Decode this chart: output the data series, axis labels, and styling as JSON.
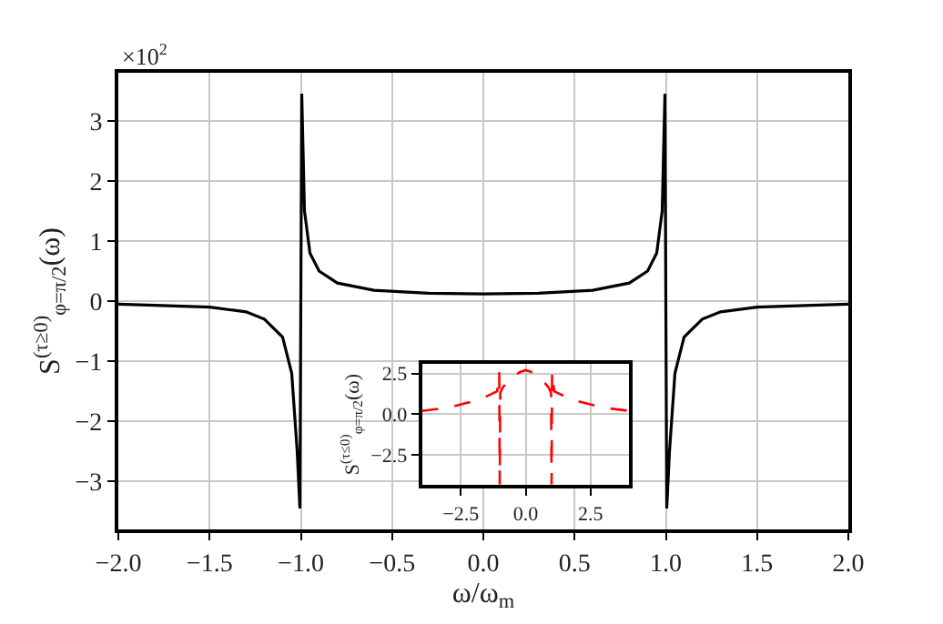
{
  "chart_data": [
    {
      "type": "line",
      "xlabel": "ω/ω$_{m}$",
      "ylabel": "S$^{(τ≥0)}$$_{φ=π/2}$(ω)",
      "annotations": [
        "×10$^{2}$"
      ],
      "x": [
        -2,
        -1.8,
        -1.5,
        -1.3,
        -1.2,
        -1.1,
        -1.05,
        -1.02,
        -1.005,
        -0.995,
        -0.98,
        -0.95,
        -0.9,
        -0.8,
        -0.6,
        -0.3,
        0,
        0.3,
        0.6,
        0.8,
        0.9,
        0.95,
        0.98,
        0.995,
        1.005,
        1.02,
        1.05,
        1.1,
        1.2,
        1.3,
        1.5,
        1.8,
        2
      ],
      "series": [
        {
          "color": "#000000",
          "line_style": "solid",
          "values": [
            -0.05,
            -0.07,
            -0.1,
            -0.18,
            -0.3,
            -0.6,
            -1.2,
            -2.5,
            -3.45,
            3.45,
            1.5,
            0.8,
            0.5,
            0.3,
            0.18,
            0.13,
            0.12,
            0.13,
            0.18,
            0.3,
            0.5,
            0.8,
            1.5,
            3.45,
            -3.45,
            -2.5,
            -1.2,
            -0.6,
            -0.3,
            -0.18,
            -0.1,
            -0.07,
            -0.05
          ]
        }
      ],
      "xlim": [
        -2,
        2
      ],
      "ylim": [
        -3.8,
        3.8
      ],
      "xticks": [
        {
          "value": -2,
          "label": "−2.0"
        },
        {
          "value": -1.5,
          "label": "−1.5"
        },
        {
          "value": -1,
          "label": "−1.0"
        },
        {
          "value": -0.5,
          "label": "−0.5"
        },
        {
          "value": 0,
          "label": "0.0"
        },
        {
          "value": 0.5,
          "label": "0.5"
        },
        {
          "value": 1,
          "label": "1.0"
        },
        {
          "value": 1.5,
          "label": "1.5"
        },
        {
          "value": 2,
          "label": "2.0"
        }
      ],
      "yticks": [
        {
          "value": -3,
          "label": "−3"
        },
        {
          "value": -2,
          "label": "−2"
        },
        {
          "value": -1,
          "label": "−1"
        },
        0,
        1,
        2,
        3
      ],
      "grid": true
    },
    {
      "type": "line",
      "ylabel": "S$^{(τ≤0)}$$_{φ=π/2}$(ω)",
      "x": [
        -4,
        -3,
        -2,
        -1.5,
        -1.1,
        -1.02,
        -1,
        -0.98,
        -0.9,
        -0.7,
        -0.4,
        -0.2,
        0,
        0.2,
        0.4,
        0.7,
        0.9,
        0.98,
        1,
        1.02,
        1.1,
        1.5,
        2,
        3,
        4
      ],
      "series": [
        {
          "color": "#ff0000",
          "line_style": "dashed",
          "values": [
            0.2,
            0.4,
            0.8,
            1.1,
            1.4,
            2.6,
            -4.3,
            1.3,
            1.6,
            2,
            2.4,
            2.6,
            2.7,
            2.6,
            2.4,
            2,
            1.6,
            1.3,
            -4.3,
            2.6,
            1.4,
            1.1,
            0.8,
            0.4,
            0.2
          ]
        }
      ],
      "xlim": [
        -4,
        4
      ],
      "ylim": [
        -4.35,
        3.1
      ],
      "xticks": [
        {
          "value": -2.5,
          "label": "−2.5"
        },
        {
          "value": 0,
          "label": "0.0"
        },
        {
          "value": 2.5,
          "label": "2.5"
        }
      ],
      "yticks": [
        {
          "value": -2.5,
          "label": "−2.5"
        },
        {
          "value": 0,
          "label": "0.0"
        },
        {
          "value": 2.5,
          "label": "2.5"
        }
      ],
      "grid": true
    }
  ]
}
